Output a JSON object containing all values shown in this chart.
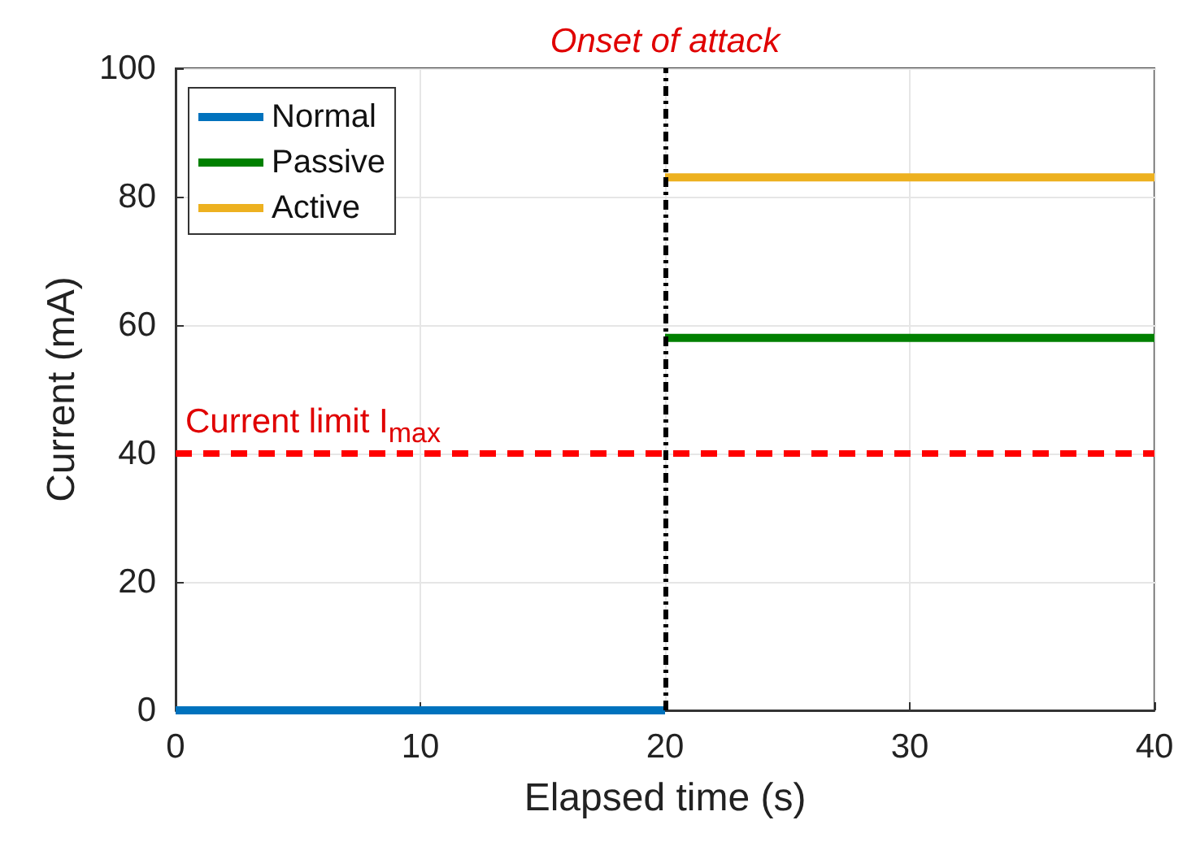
{
  "chart_data": {
    "type": "line",
    "xlabel": "Elapsed time (s)",
    "ylabel": "Current (mA)",
    "xlim": [
      0,
      40
    ],
    "xticks": [
      0,
      10,
      20,
      30,
      40
    ],
    "ylim": [
      0,
      100
    ],
    "yticks": [
      0,
      20,
      40,
      60,
      80,
      100
    ],
    "grid": true,
    "legend": "top left",
    "marker": "none",
    "line_style": "solid",
    "series": [
      {
        "name": "Normal",
        "color": "#0072bd",
        "x": [
          0,
          20
        ],
        "values": [
          0,
          0
        ]
      },
      {
        "name": "Passive",
        "color": "#008000",
        "x": [
          20,
          40
        ],
        "values": [
          58,
          58
        ]
      },
      {
        "name": "Active",
        "color": "#edb120",
        "x": [
          20,
          40
        ],
        "values": [
          83,
          83
        ]
      }
    ],
    "ref_lines": [
      {
        "axis": "y",
        "value": 40,
        "label": "Current limit I$_{max}$",
        "color": "#ff0000",
        "line_style": "dashed"
      },
      {
        "axis": "x",
        "value": 20,
        "label": "Onset of attack",
        "color": "#000000",
        "line_style": "dotted"
      }
    ]
  }
}
